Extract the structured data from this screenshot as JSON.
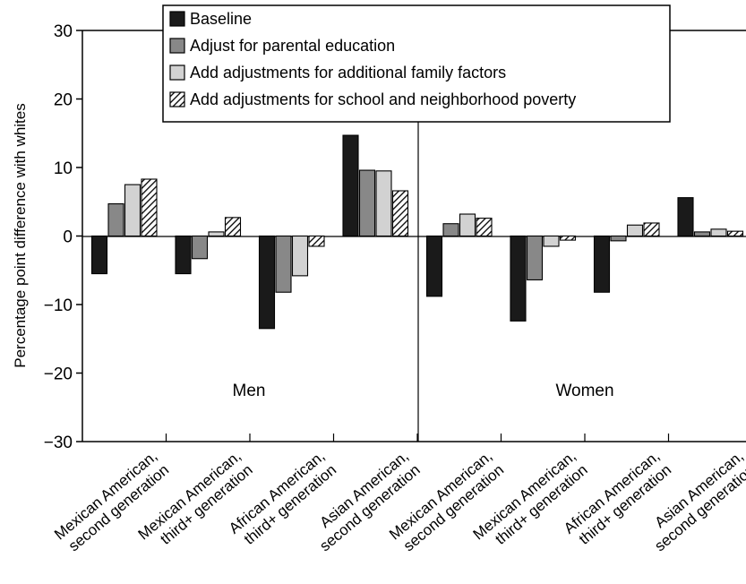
{
  "chart_data": {
    "type": "bar",
    "ylabel": "Percentage point difference with whites",
    "ylim": [
      -30,
      30
    ],
    "yticks": [
      -30,
      -20,
      -10,
      0,
      10,
      20,
      30
    ],
    "panels": [
      "Men",
      "Women"
    ],
    "categories": [
      [
        "Mexican American,",
        "second generation"
      ],
      [
        "Mexican American,",
        "third+ generation"
      ],
      [
        "African American,",
        "third+ generation"
      ],
      [
        "Asian American,",
        "second generation"
      ],
      [
        "Mexican American,",
        "second generation"
      ],
      [
        "Mexican American,",
        "third+ generation"
      ],
      [
        "African American,",
        "third+ generation"
      ],
      [
        "Asian American,",
        "second generation"
      ]
    ],
    "series": [
      {
        "name": "Baseline",
        "values": [
          -5.5,
          -5.5,
          -13.5,
          14.7,
          -8.8,
          -12.4,
          -8.2,
          5.6
        ]
      },
      {
        "name": "Adjust for parental education",
        "values": [
          4.7,
          -3.3,
          -8.2,
          9.6,
          1.8,
          -6.4,
          -0.7,
          0.6
        ]
      },
      {
        "name": "Add adjustments for additional family factors",
        "values": [
          7.5,
          0.6,
          -5.8,
          9.5,
          3.2,
          -1.5,
          1.6,
          1.0
        ]
      },
      {
        "name": "Add adjustments for school and neighborhood poverty",
        "values": [
          8.3,
          2.7,
          -1.5,
          6.6,
          2.6,
          -0.6,
          1.9,
          0.7
        ]
      }
    ],
    "legend_position": "top-center",
    "grid": false
  }
}
